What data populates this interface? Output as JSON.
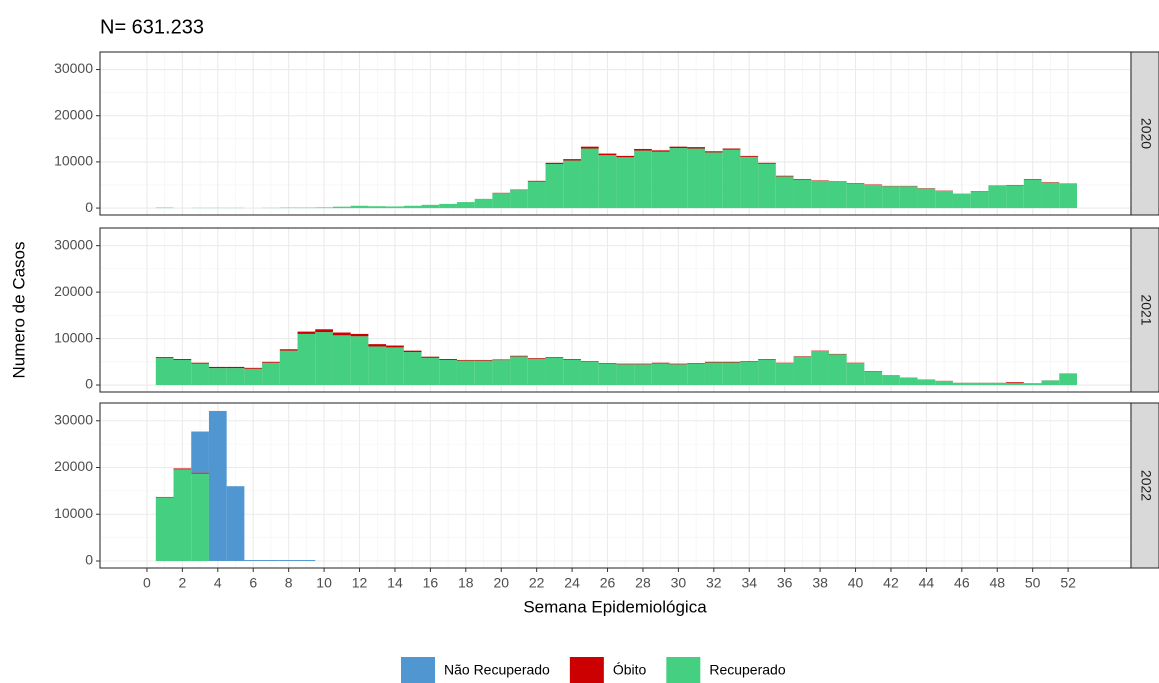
{
  "chart_data": {
    "type": "bar",
    "stacked": true,
    "title": "N= 631.233",
    "x_label": "Semana Epidemiológica",
    "y_label": "Numero de Casos",
    "facets": [
      "2020",
      "2021",
      "2022"
    ],
    "x": [
      1,
      2,
      3,
      4,
      5,
      6,
      7,
      8,
      9,
      10,
      11,
      12,
      13,
      14,
      15,
      16,
      17,
      18,
      19,
      20,
      21,
      22,
      23,
      24,
      25,
      26,
      27,
      28,
      29,
      30,
      31,
      32,
      33,
      34,
      35,
      36,
      37,
      38,
      39,
      40,
      41,
      42,
      43,
      44,
      45,
      46,
      47,
      48,
      49,
      50,
      51,
      52
    ],
    "xlim": [
      -2.65,
      55.55
    ],
    "xticks": [
      0,
      2,
      4,
      6,
      8,
      10,
      12,
      14,
      16,
      18,
      20,
      22,
      24,
      26,
      28,
      30,
      32,
      34,
      36,
      38,
      40,
      42,
      44,
      46,
      48,
      50,
      52
    ],
    "ylim": [
      -1500,
      33800
    ],
    "yticks": [
      0,
      10000,
      20000,
      30000
    ],
    "grid": true,
    "legend": "bottom",
    "series": [
      {
        "name": "Não Recuperado",
        "color": "#5096d0",
        "values": [
          [
            0,
            0,
            0,
            0,
            0,
            0,
            0,
            0,
            0,
            0,
            0,
            0,
            0,
            0,
            0,
            0,
            0,
            0,
            0,
            0,
            0,
            0,
            0,
            0,
            0,
            0,
            0,
            0,
            0,
            0,
            0,
            0,
            0,
            0,
            0,
            0,
            0,
            0,
            0,
            0,
            0,
            0,
            0,
            0,
            0,
            0,
            0,
            0,
            0,
            0,
            0,
            0
          ],
          [
            0,
            0,
            0,
            0,
            0,
            0,
            0,
            0,
            0,
            0,
            0,
            0,
            0,
            0,
            0,
            0,
            0,
            0,
            0,
            0,
            0,
            0,
            0,
            0,
            0,
            0,
            0,
            0,
            0,
            0,
            0,
            0,
            0,
            0,
            0,
            0,
            0,
            0,
            0,
            0,
            0,
            0,
            0,
            0,
            0,
            0,
            0,
            0,
            0,
            0,
            0,
            0
          ],
          [
            0,
            0,
            8800,
            32100,
            16000,
            200,
            200,
            200,
            200,
            null,
            null,
            null,
            null,
            null,
            null,
            null,
            null,
            null,
            null,
            null,
            null,
            null,
            null,
            null,
            null,
            null,
            null,
            null,
            null,
            null,
            null,
            null,
            null,
            null,
            null,
            null,
            null,
            null,
            null,
            null,
            null,
            null,
            null,
            null,
            null,
            null,
            null,
            null,
            null,
            null,
            null,
            null
          ]
        ]
      },
      {
        "name": "Óbito",
        "color": "#cc0000",
        "values": [
          [
            0,
            0,
            0,
            0,
            0,
            0,
            0,
            0,
            0,
            0,
            0,
            0,
            0,
            0,
            0,
            0,
            0,
            0,
            0,
            80,
            100,
            150,
            250,
            300,
            400,
            350,
            300,
            350,
            300,
            300,
            300,
            250,
            250,
            200,
            200,
            150,
            120,
            100,
            100,
            100,
            100,
            80,
            80,
            80,
            60,
            50,
            60,
            70,
            80,
            100,
            100,
            80
          ],
          [
            200,
            200,
            200,
            250,
            250,
            200,
            200,
            300,
            500,
            600,
            600,
            500,
            500,
            400,
            300,
            250,
            200,
            150,
            150,
            150,
            150,
            150,
            150,
            150,
            150,
            150,
            150,
            150,
            150,
            150,
            150,
            150,
            150,
            150,
            100,
            100,
            100,
            100,
            100,
            100,
            80,
            60,
            50,
            40,
            30,
            20,
            20,
            20,
            200,
            20,
            20,
            30
          ],
          [
            100,
            200,
            200,
            0,
            0,
            0,
            0,
            0,
            0,
            null,
            null,
            null,
            null,
            null,
            null,
            null,
            null,
            null,
            null,
            null,
            null,
            null,
            null,
            null,
            null,
            null,
            null,
            null,
            null,
            null,
            null,
            null,
            null,
            null,
            null,
            null,
            null,
            null,
            null,
            null,
            null,
            null,
            null,
            null,
            null,
            null,
            null,
            null,
            null,
            null,
            null,
            null
          ]
        ]
      },
      {
        "name": "Recuperado",
        "color": "#45cf80",
        "values": [
          [
            100,
            0,
            50,
            50,
            50,
            0,
            50,
            100,
            100,
            150,
            300,
            500,
            400,
            350,
            500,
            700,
            900,
            1300,
            2000,
            3220,
            3900,
            5750,
            9550,
            10300,
            12900,
            11450,
            11000,
            12450,
            12200,
            13000,
            12900,
            12050,
            12650,
            11100,
            9600,
            6850,
            6180,
            5900,
            5700,
            5300,
            5000,
            4720,
            4720,
            4220,
            3740,
            3050,
            3640,
            4830,
            4920,
            6200,
            5500,
            5220
          ],
          [
            5800,
            5400,
            4600,
            3650,
            3650,
            3500,
            4800,
            7400,
            11000,
            11400,
            10700,
            10500,
            8300,
            8100,
            7100,
            5850,
            5400,
            5250,
            5250,
            5350,
            6150,
            5650,
            5850,
            5450,
            4950,
            4550,
            4450,
            4450,
            4650,
            4450,
            4550,
            4850,
            4850,
            4950,
            5500,
            4700,
            6100,
            7300,
            6600,
            4700,
            2920,
            2040,
            1550,
            1160,
            870,
            480,
            480,
            480,
            400,
            380,
            980,
            2470
          ],
          [
            13600,
            19600,
            18700,
            0,
            0,
            0,
            0,
            0,
            0,
            null,
            null,
            null,
            null,
            null,
            null,
            null,
            null,
            null,
            null,
            null,
            null,
            null,
            null,
            null,
            null,
            null,
            null,
            null,
            null,
            null,
            null,
            null,
            null,
            null,
            null,
            null,
            null,
            null,
            null,
            null,
            null,
            null,
            null,
            null,
            null,
            null,
            null,
            null,
            null,
            null,
            null,
            null
          ]
        ]
      }
    ]
  }
}
